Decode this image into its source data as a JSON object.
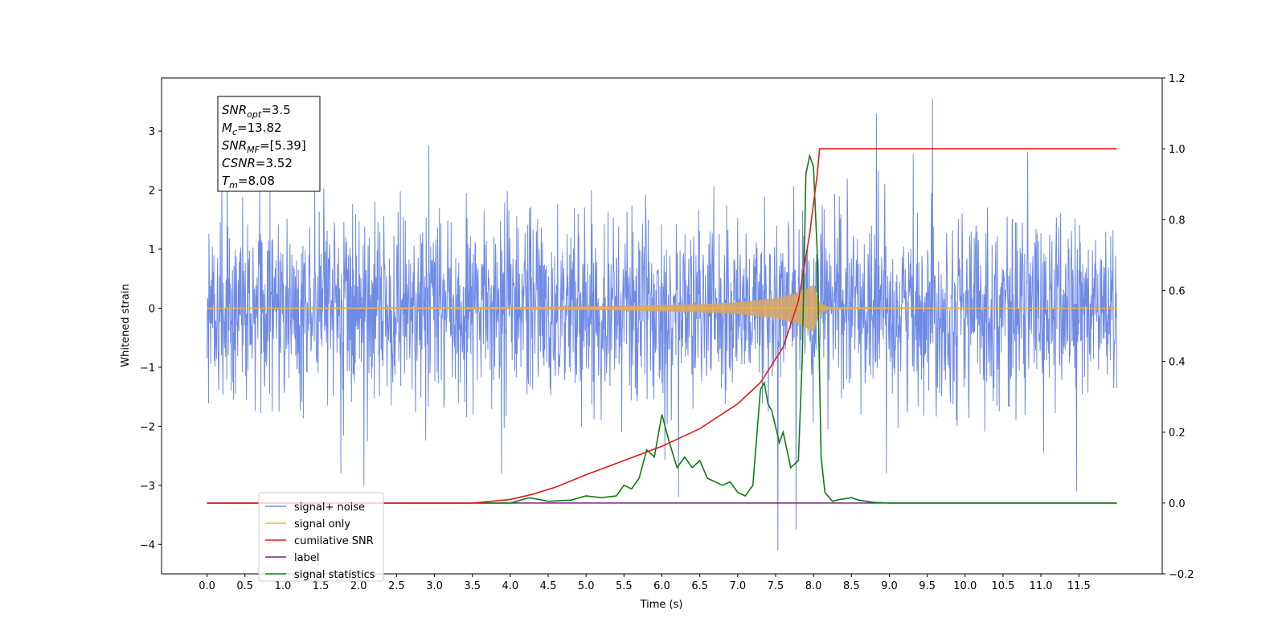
{
  "chart_data": {
    "type": "line",
    "xlabel": "Time (s)",
    "ylabel": "Whitened strain",
    "xlim": [
      -0.6,
      12.6
    ],
    "ylim": [
      -4.5,
      3.9
    ],
    "y2lim": [
      -0.2,
      1.2
    ],
    "x_ticks": [
      0.0,
      0.5,
      1.0,
      1.5,
      2.0,
      2.5,
      3.0,
      3.5,
      4.0,
      4.5,
      5.0,
      5.5,
      6.0,
      6.5,
      7.0,
      7.5,
      8.0,
      8.5,
      9.0,
      9.5,
      10.0,
      10.5,
      11.0,
      11.5
    ],
    "x_tick_labels": [
      "0.0",
      "0.5",
      "1.0",
      "1.5",
      "2.0",
      "2.5",
      "3.0",
      "3.5",
      "4.0",
      "4.5",
      "5.0",
      "5.5",
      "6.0",
      "6.5",
      "7.0",
      "7.5",
      "8.0",
      "8.5",
      "9.0",
      "9.5",
      "10.0",
      "10.5",
      "11.0",
      "11.5"
    ],
    "y_ticks": [
      3,
      2,
      1,
      0,
      -1,
      -2,
      -3,
      -4
    ],
    "y_tick_labels": [
      "3",
      "2",
      "1",
      "0",
      "−1",
      "−2",
      "−3",
      "−4"
    ],
    "y2_ticks": [
      1.2,
      1.0,
      0.8,
      0.6,
      0.4,
      0.2,
      0.0,
      -0.2
    ],
    "y2_tick_labels": [
      "1.2",
      "1.0",
      "0.8",
      "0.6",
      "0.4",
      "0.2",
      "0.0",
      "−0.2"
    ],
    "grid": false,
    "legend_position": "lower-left",
    "series": [
      {
        "name": "signal+ noise",
        "color": "#6f8be6",
        "axis": "left",
        "kind": "noise",
        "x_range": [
          0.0,
          12.0
        ],
        "typical_range": [
          -1.8,
          1.8
        ],
        "notable_peaks": [
          {
            "x": 9.57,
            "y": 3.55
          },
          {
            "x": 8.83,
            "y": 3.3
          },
          {
            "x": 7.53,
            "y": -4.1
          },
          {
            "x": 7.77,
            "y": -3.75
          },
          {
            "x": 2.07,
            "y": -3.0
          },
          {
            "x": 6.22,
            "y": -3.2
          },
          {
            "x": 11.47,
            "y": -3.1
          }
        ]
      },
      {
        "name": "signal only",
        "color": "#f5b041",
        "axis": "left",
        "kind": "chirp",
        "envelope": {
          "x": [
            0.0,
            4.0,
            5.5,
            6.5,
            7.0,
            7.5,
            7.8,
            8.0,
            8.08,
            8.2,
            12.0
          ],
          "amplitude": [
            0.01,
            0.02,
            0.04,
            0.07,
            0.1,
            0.17,
            0.26,
            0.4,
            0.1,
            0.02,
            0.0
          ]
        }
      },
      {
        "name": "cumilative SNR",
        "color": "#e8181a",
        "axis": "right",
        "x": [
          0.0,
          3.5,
          4.0,
          4.3,
          4.6,
          5.0,
          5.5,
          6.0,
          6.5,
          7.0,
          7.3,
          7.6,
          7.8,
          7.95,
          8.05,
          8.08,
          12.0
        ],
        "y": [
          0.0,
          0.0,
          0.01,
          0.025,
          0.045,
          0.08,
          0.12,
          0.16,
          0.21,
          0.28,
          0.34,
          0.44,
          0.57,
          0.76,
          0.93,
          1.0,
          1.0
        ]
      },
      {
        "name": "label",
        "color": "#7a1d86",
        "axis": "right",
        "x": [
          0.0,
          12.0
        ],
        "y": [
          0.0,
          0.0
        ]
      },
      {
        "name": "signal statistics",
        "color": "#0f7d0f",
        "axis": "right",
        "x": [
          0.0,
          4.0,
          4.25,
          4.5,
          4.8,
          5.0,
          5.2,
          5.4,
          5.5,
          5.6,
          5.7,
          5.8,
          5.9,
          6.0,
          6.1,
          6.2,
          6.3,
          6.4,
          6.5,
          6.6,
          6.7,
          6.8,
          6.9,
          7.0,
          7.1,
          7.2,
          7.3,
          7.35,
          7.4,
          7.45,
          7.55,
          7.6,
          7.7,
          7.75,
          7.8,
          7.85,
          7.9,
          7.95,
          8.0,
          8.05,
          8.1,
          8.15,
          8.25,
          8.35,
          8.5,
          8.6,
          8.7,
          8.8,
          9.0,
          12.0
        ],
        "y": [
          0.0,
          0.0,
          0.015,
          0.005,
          0.008,
          0.02,
          0.015,
          0.02,
          0.05,
          0.04,
          0.07,
          0.15,
          0.13,
          0.25,
          0.17,
          0.1,
          0.13,
          0.1,
          0.12,
          0.07,
          0.06,
          0.05,
          0.06,
          0.03,
          0.02,
          0.05,
          0.32,
          0.34,
          0.28,
          0.26,
          0.17,
          0.2,
          0.1,
          0.11,
          0.12,
          0.4,
          0.93,
          0.98,
          0.95,
          0.7,
          0.13,
          0.03,
          0.005,
          0.01,
          0.015,
          0.008,
          0.005,
          0.002,
          0.0,
          0.0
        ]
      }
    ],
    "info_box": {
      "lines": [
        {
          "var": "SNR",
          "sub": "opt",
          "value": "=3.5"
        },
        {
          "var": "M",
          "sub": "c",
          "value": "=13.82"
        },
        {
          "var": "SNR",
          "sub": "MF",
          "value": "=[5.39]"
        },
        {
          "var": "CSNR",
          "sub": "",
          "value": "=3.52"
        },
        {
          "var": "T",
          "sub": "m",
          "value": "=8.08"
        }
      ]
    }
  }
}
